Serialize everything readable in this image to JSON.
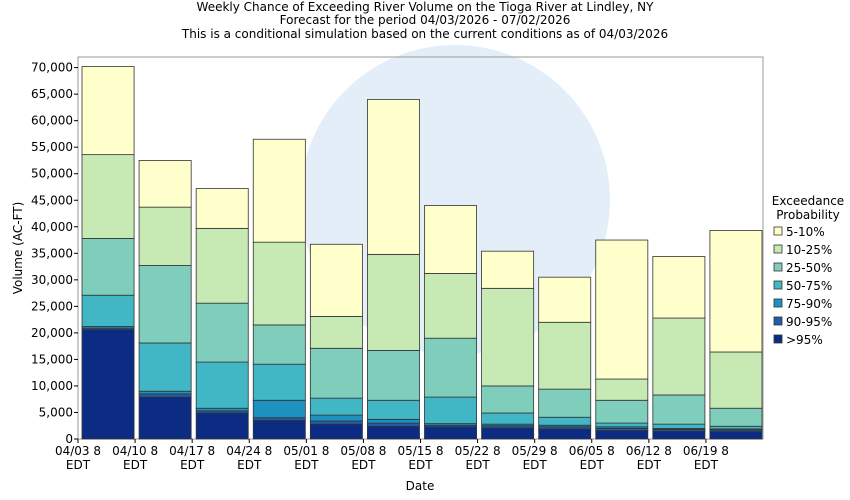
{
  "chart_data": {
    "type": "stacked_bar",
    "title": "Weekly Chance of Exceeding River Volume on the Tioga River at Lindley, NY",
    "subtitle": "Forecast for the period 04/03/2026 - 07/02/2026",
    "note": "This is a conditional simulation based on the current conditions as of 04/03/2026",
    "y_label": "Volume (AC-FT)",
    "x_label": "Date",
    "legend_title": "Exceedance Probability",
    "categories": [
      "04/03 8 EDT",
      "04/10 8 EDT",
      "04/17 8 EDT",
      "04/24 8 EDT",
      "05/01 8 EDT",
      "05/08 8 EDT",
      "05/15 8 EDT",
      "05/22 8 EDT",
      "05/29 8 EDT",
      "06/05 8 EDT",
      "06/12 8 EDT",
      "06/19 8 EDT"
    ],
    "series": [
      {
        "name": ">95%",
        "color": "#0c2c84",
        "values": [
          20600,
          7900,
          4900,
          3500,
          2800,
          2400,
          2300,
          2100,
          1900,
          1600,
          1500,
          1400
        ]
      },
      {
        "name": "90-95%",
        "color": "#225ea8",
        "values": [
          300,
          600,
          400,
          500,
          600,
          600,
          300,
          400,
          400,
          400,
          300,
          300
        ]
      },
      {
        "name": "75-90%",
        "color": "#1d91c0",
        "values": [
          300,
          500,
          500,
          3300,
          1100,
          700,
          300,
          300,
          300,
          300,
          200,
          200
        ]
      },
      {
        "name": "50-75%",
        "color": "#41b6c4",
        "values": [
          5900,
          9100,
          8700,
          6800,
          3200,
          3600,
          5000,
          2100,
          1500,
          700,
          800,
          500
        ]
      },
      {
        "name": "25-50%",
        "color": "#7fcdbb",
        "values": [
          10700,
          14600,
          11100,
          7400,
          9400,
          9400,
          11100,
          5100,
          5300,
          4300,
          5500,
          3400
        ]
      },
      {
        "name": "10-25%",
        "color": "#c7e9b4",
        "values": [
          15800,
          11000,
          14100,
          15600,
          6000,
          18100,
          12200,
          18400,
          12600,
          4000,
          14500,
          10600
        ]
      },
      {
        "name": "5-10%",
        "color": "#ffffcc",
        "values": [
          16600,
          8800,
          7500,
          19400,
          13600,
          29200,
          12800,
          7000,
          8500,
          26200,
          11600,
          22900
        ]
      }
    ],
    "ylim": [
      0,
      72000
    ],
    "yticks": [
      0,
      {
        "value": 5000,
        "label": "5,000"
      },
      {
        "value": 10000,
        "label": "10,000"
      },
      {
        "value": 15000,
        "label": "15,000"
      },
      {
        "value": 20000,
        "label": "20,000"
      },
      {
        "value": 25000,
        "label": "25,000"
      },
      {
        "value": 30000,
        "label": "30,000"
      },
      {
        "value": 35000,
        "label": "35,000"
      },
      {
        "value": 40000,
        "label": "40,000"
      },
      {
        "value": 45000,
        "label": "45,000"
      },
      {
        "value": 50000,
        "label": "50,000"
      },
      {
        "value": 55000,
        "label": "55,000"
      },
      {
        "value": 60000,
        "label": "60,000"
      },
      {
        "value": 65000,
        "label": "65,000"
      },
      {
        "value": 70000,
        "label": "70,000"
      }
    ],
    "grid": false
  }
}
